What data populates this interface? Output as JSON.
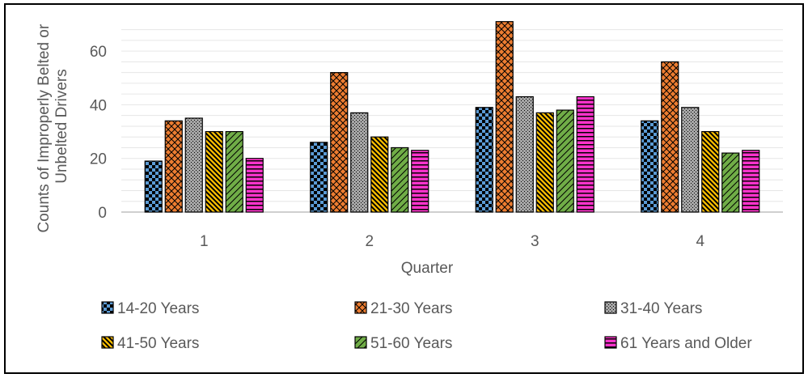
{
  "chart_data": {
    "type": "bar",
    "title": "",
    "xlabel": "Quarter",
    "ylabel_lines": [
      "Counts of Improperly Belted or",
      "Unbelted Drivers"
    ],
    "categories": [
      "1",
      "2",
      "3",
      "4"
    ],
    "ylim": [
      0,
      70
    ],
    "yticks": [
      "0",
      "20",
      "40",
      "60"
    ],
    "ytick_values": [
      0,
      20,
      40,
      60
    ],
    "minor_grid_step": 4,
    "grid": true,
    "legend_position": "bottom",
    "series": [
      {
        "name": "14-20 Years",
        "values": [
          19,
          26,
          39,
          34
        ],
        "color": "#5b9bd5",
        "pattern": "checker"
      },
      {
        "name": "21-30 Years",
        "values": [
          34,
          52,
          71,
          56
        ],
        "color": "#ed7d31",
        "pattern": "crosshatch"
      },
      {
        "name": "31-40 Years",
        "values": [
          35,
          37,
          43,
          39
        ],
        "color": "#a5a5a5",
        "pattern": "dots"
      },
      {
        "name": "41-50 Years",
        "values": [
          30,
          28,
          37,
          30
        ],
        "color": "#ffc000",
        "pattern": "diagonal"
      },
      {
        "name": "51-60 Years",
        "values": [
          30,
          24,
          38,
          22
        ],
        "color": "#70ad47",
        "pattern": "diag-hatch"
      },
      {
        "name": "61 Years and Older",
        "values": [
          20,
          23,
          43,
          23
        ],
        "color": "#ff33cc",
        "pattern": "horizontal"
      }
    ]
  }
}
